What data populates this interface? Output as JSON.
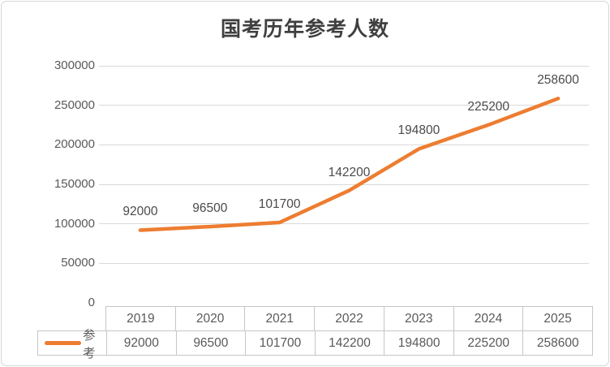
{
  "title": "国考历年参考人数",
  "colors": {
    "line": "#ED7D31",
    "grid": "#D9D9D9",
    "text": "#595959",
    "title_text": "#3F3F3F",
    "table_border": "#C6C6C6"
  },
  "chart_data": {
    "type": "line",
    "title": "国考历年参考人数",
    "categories": [
      "2019",
      "2020",
      "2021",
      "2022",
      "2023",
      "2024",
      "2025"
    ],
    "series": [
      {
        "name": "参考",
        "values": [
          92000,
          96500,
          101700,
          142200,
          194800,
          225200,
          258600
        ]
      }
    ],
    "xlabel": "",
    "ylabel": "",
    "ylim": [
      0,
      300000
    ],
    "yticks": [
      0,
      50000,
      100000,
      150000,
      200000,
      250000,
      300000
    ],
    "grid": true,
    "data_labels": true,
    "legend_position": "data-table-left",
    "data_table": true
  }
}
